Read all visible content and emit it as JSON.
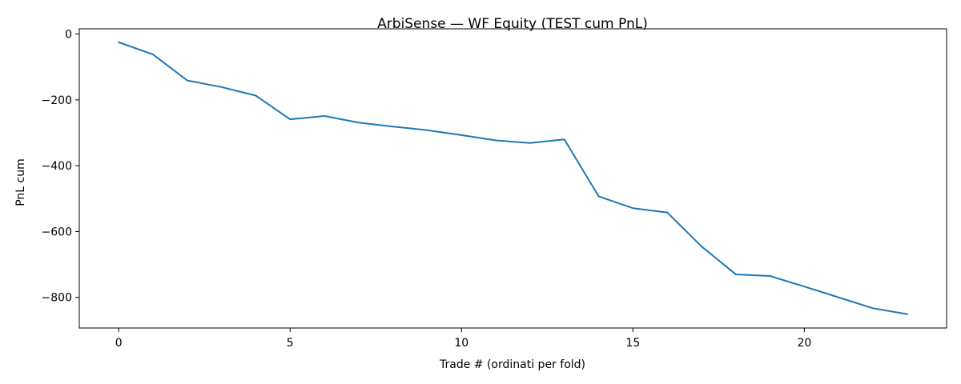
{
  "chart_data": {
    "type": "line",
    "title": "ArbiSense — WF Equity (TEST cum PnL)",
    "xlabel": "Trade # (ordinati per fold)",
    "ylabel": "PnL cum",
    "xlim": [
      -1.15,
      24.15
    ],
    "ylim": [
      -893,
      16
    ],
    "xticks": [
      0,
      5,
      10,
      15,
      20
    ],
    "yticks": [
      0,
      -200,
      -400,
      -600,
      -800
    ],
    "tick_labels_x": [
      "0",
      "5",
      "10",
      "15",
      "20"
    ],
    "tick_labels_y": [
      "0",
      "−200",
      "−400",
      "−600",
      "−800"
    ],
    "grid": false,
    "legend": "none",
    "colors": {
      "line": "#1f77b4"
    },
    "series": [
      {
        "x": [
          0,
          1,
          2,
          3,
          4,
          5,
          6,
          7,
          8,
          9,
          10,
          11,
          12,
          13,
          14,
          15,
          16,
          17,
          18,
          19,
          20,
          21,
          22,
          23
        ],
        "values": [
          -25,
          -62,
          -141,
          -161,
          -187,
          -259,
          -249,
          -269,
          -281,
          -292,
          -307,
          -323,
          -331,
          -320,
          -493,
          -529,
          -542,
          -645,
          -730,
          -735,
          -767,
          -800,
          -833,
          -851
        ]
      }
    ]
  }
}
